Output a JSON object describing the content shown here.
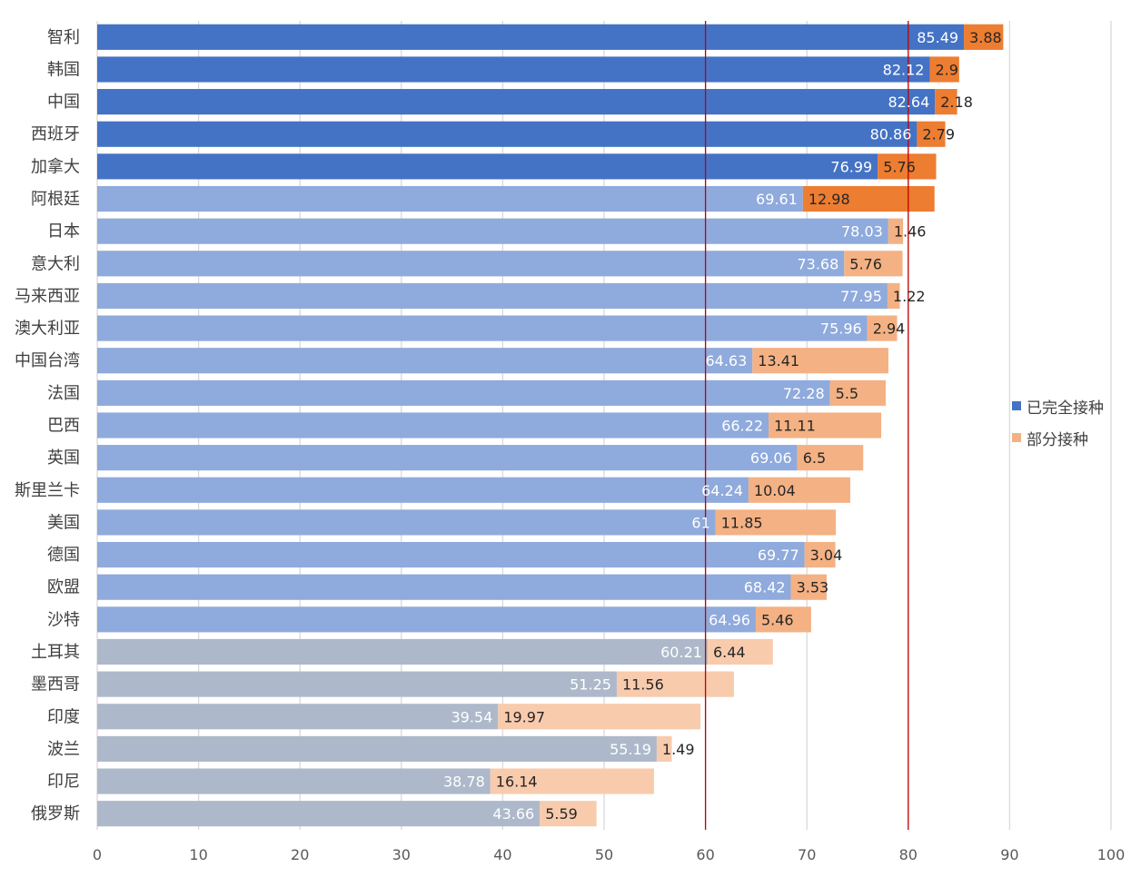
{
  "chart_data": {
    "type": "bar",
    "orientation": "horizontal",
    "stacked": true,
    "title": "",
    "xlabel": "",
    "ylabel": "",
    "xlim": [
      0,
      100
    ],
    "x_ticks": [
      0,
      10,
      20,
      30,
      40,
      50,
      60,
      70,
      80,
      90,
      100
    ],
    "grid": "vertical",
    "legend_position": "right",
    "reference_lines": [
      60,
      80
    ],
    "reference_line_color": "#c00000",
    "categories": [
      "智利",
      "韩国",
      "中国",
      "西班牙",
      "加拿大",
      "阿根廷",
      "日本",
      "意大利",
      "马来西亚",
      "澳大利亚",
      "中国台湾",
      "法国",
      "巴西",
      "英国",
      "斯里兰卡",
      "美国",
      "德国",
      "欧盟",
      "沙特",
      "土耳其",
      "墨西哥",
      "印度",
      "波兰",
      "印尼",
      "俄罗斯"
    ],
    "series": [
      {
        "name": "已完全接种",
        "values": [
          85.49,
          82.12,
          82.64,
          80.86,
          76.99,
          69.61,
          78.03,
          73.68,
          77.95,
          75.96,
          64.63,
          72.28,
          66.22,
          69.06,
          64.24,
          61,
          69.77,
          68.42,
          64.96,
          60.21,
          51.25,
          39.54,
          55.19,
          38.78,
          43.66
        ],
        "color": "#4472c4"
      },
      {
        "name": "部分接种",
        "values": [
          3.88,
          2.9,
          2.18,
          2.79,
          5.76,
          12.98,
          1.46,
          5.76,
          1.22,
          2.94,
          13.41,
          5.5,
          11.11,
          6.5,
          10.04,
          11.85,
          3.04,
          3.53,
          5.46,
          6.44,
          11.56,
          19.97,
          1.49,
          16.14,
          5.59
        ],
        "color": "#f4b183"
      }
    ],
    "tiers": [
      {
        "count": 5,
        "full_color": "#4472c4",
        "partial_color": "#ed7d31"
      },
      {
        "count": 14,
        "full_color": "#8faadc",
        "partial_color": "#f4b183"
      },
      {
        "count": 6,
        "full_color": "#adb9ca",
        "partial_color": "#f8cbad"
      }
    ],
    "tier_overrides": [
      {
        "index": 5,
        "partial_color": "#ed7d31"
      }
    ]
  }
}
